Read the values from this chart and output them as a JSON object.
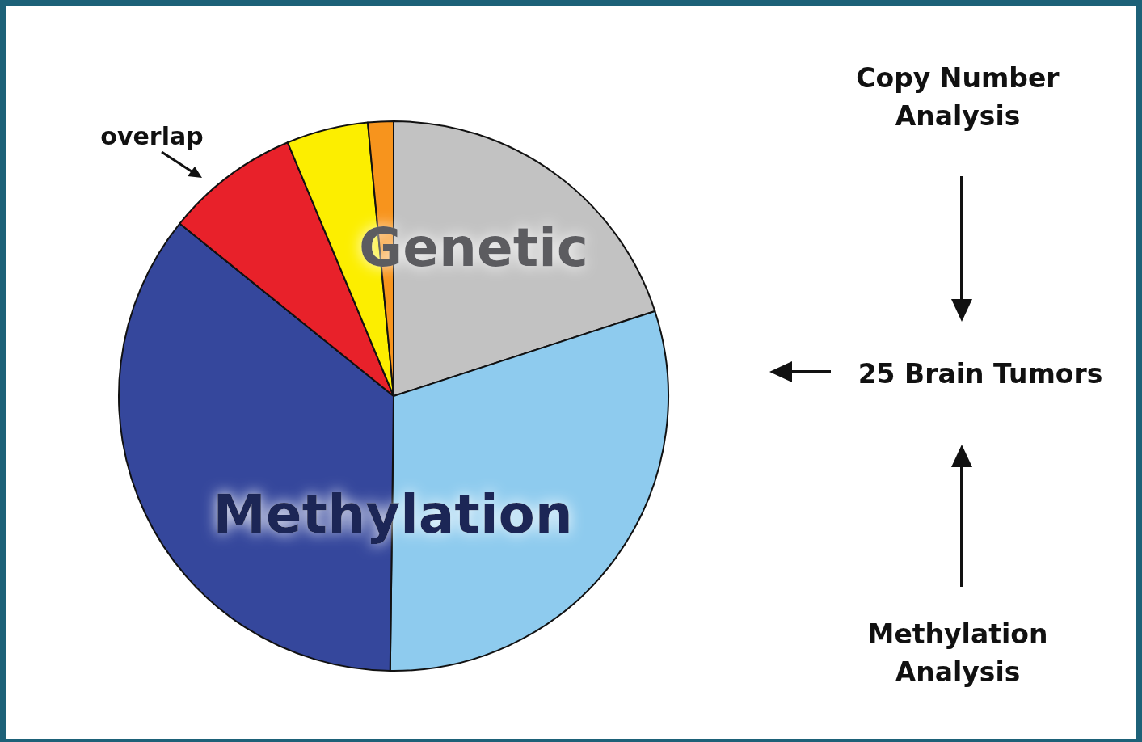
{
  "chart_data": {
    "type": "pie",
    "categories": [
      null,
      null,
      null,
      null,
      null,
      null
    ],
    "values": [
      20,
      30.2,
      35.6,
      7.9,
      4.8,
      1.5
    ],
    "colors": [
      "#c2c2c2",
      "#8ecbee",
      "#35479c",
      "#e8212a",
      "#fcee00",
      "#f7941d"
    ],
    "annotations": [
      "Genetic",
      "Methylation",
      "overlap",
      "Copy Number\nAnalysis",
      "25 Brain Tumors",
      "Methylation\nAnalysis"
    ]
  }
}
